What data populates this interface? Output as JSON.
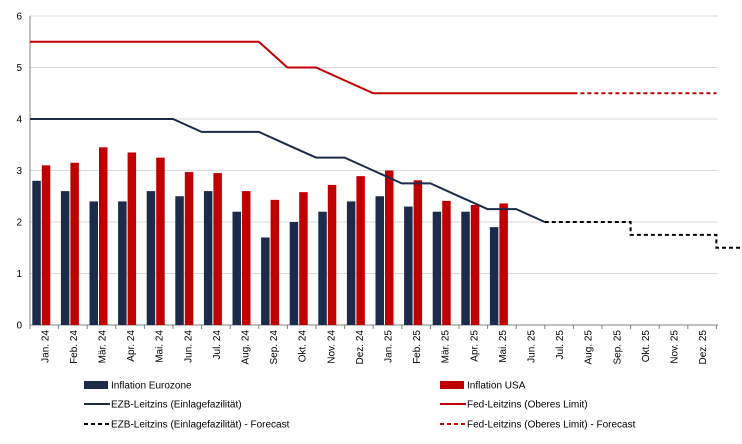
{
  "chart_data": {
    "type": "bar",
    "title": "",
    "xlabel": "",
    "ylabel": "",
    "ylim": [
      0,
      6
    ],
    "yticks": [
      "0",
      "1",
      "2",
      "3",
      "4",
      "5",
      "6"
    ],
    "grid": "horizontal",
    "legend_position": "bottom",
    "categories": [
      "Jan. 24",
      "Feb. 24",
      "Mär. 24",
      "Apr. 24",
      "Mai. 24",
      "Jun. 24",
      "Jul. 24",
      "Aug. 24",
      "Sep. 24",
      "Okt. 24",
      "Nov. 24",
      "Dez. 24",
      "Jan. 25",
      "Feb. 25",
      "Mär. 25",
      "Apr. 25",
      "Mai. 25",
      "Jun. 25",
      "Jul. 25",
      "Aug. 25",
      "Sep. 25",
      "Okt. 25",
      "Nov. 25",
      "Dez. 25"
    ],
    "series": [
      {
        "name": "Inflation Eurozone",
        "kind": "bar",
        "color": "#1c2b4a",
        "values": [
          2.8,
          2.6,
          2.4,
          2.4,
          2.6,
          2.5,
          2.6,
          2.2,
          1.7,
          2.0,
          2.2,
          2.4,
          2.5,
          2.3,
          2.2,
          2.2,
          1.9,
          null,
          null,
          null,
          null,
          null,
          null,
          null
        ]
      },
      {
        "name": "Inflation USA",
        "kind": "bar",
        "color": "#c00000",
        "values": [
          3.1,
          3.15,
          3.45,
          3.35,
          3.25,
          2.97,
          2.95,
          2.6,
          2.43,
          2.58,
          2.72,
          2.89,
          3.0,
          2.81,
          2.41,
          2.33,
          2.36,
          null,
          null,
          null,
          null,
          null,
          null,
          null
        ]
      },
      {
        "name": "EZB-Leitzins (Einlagefazilität)",
        "kind": "line",
        "color": "#1c2b4a",
        "dash": "solid",
        "points": [
          [
            -0.5,
            4.0
          ],
          [
            4.5,
            4.0
          ],
          [
            5.5,
            3.75
          ],
          [
            7.5,
            3.75
          ],
          [
            8.5,
            3.5
          ],
          [
            9.5,
            3.25
          ],
          [
            10.5,
            3.25
          ],
          [
            11.5,
            3.0
          ],
          [
            12.5,
            2.75
          ],
          [
            13.5,
            2.75
          ],
          [
            14.5,
            2.5
          ],
          [
            15.5,
            2.25
          ],
          [
            16.5,
            2.25
          ],
          [
            17.5,
            2.0
          ]
        ]
      },
      {
        "name": "Fed-Leitzins (Oberes Limit)",
        "kind": "line",
        "color": "#c00000",
        "dash": "solid",
        "points": [
          [
            -0.5,
            5.5
          ],
          [
            7.5,
            5.5
          ],
          [
            8.5,
            5.0
          ],
          [
            9.5,
            5.0
          ],
          [
            11.5,
            4.5
          ],
          [
            18.5,
            4.5
          ]
        ]
      },
      {
        "name": "EZB-Leitzins (Einlagefazilität) - Forecast",
        "kind": "line",
        "color": "#000000",
        "dash": "dashed",
        "points": [
          [
            17.5,
            2.0
          ],
          [
            20.5,
            2.0
          ],
          [
            20.5,
            1.75
          ],
          [
            23.5,
            1.75
          ],
          [
            23.5,
            1.5
          ],
          [
            24.5,
            1.5
          ]
        ]
      },
      {
        "name": "Fed-Leitzins (Oberes Limit) - Forecast",
        "kind": "line",
        "color": "#c00000",
        "dash": "dashed",
        "points": [
          [
            18.5,
            4.5
          ],
          [
            23.5,
            4.5
          ]
        ]
      }
    ]
  }
}
